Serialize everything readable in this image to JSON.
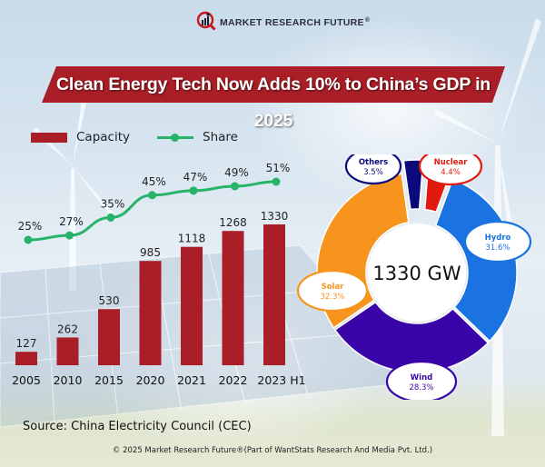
{
  "logo": {
    "text": "MARKET RESEARCH FUTURE",
    "reg": "®",
    "icon": "magnifier-bar-chart-icon"
  },
  "banner": {
    "title": "Clean Energy Tech Now Adds 10% to China’s GDP in 2025",
    "color": "#aa1f27"
  },
  "legend": {
    "capacity_label": "Capacity",
    "share_label": "Share"
  },
  "source": "Source: China Electricity Council (CEC)",
  "copyright": "© 2025 Market Research Future®(Part of WantStats Research And Media Pvt. Ltd.)",
  "colors": {
    "bar": "#aa1f27",
    "line": "#27b36a",
    "solar": "#f7941d",
    "hydro": "#1a73e0",
    "wind": "#3a05a8",
    "nuclear": "#e2190f",
    "others": "#0a0a7a"
  },
  "chart_data": [
    {
      "type": "bar",
      "title": "",
      "xlabel": "",
      "ylabel": "",
      "categories": [
        "2005",
        "2010",
        "2015",
        "2020",
        "2021",
        "2022",
        "2023 H1"
      ],
      "series": [
        {
          "name": "Capacity",
          "type": "bar",
          "values": [
            127,
            262,
            530,
            985,
            1118,
            1268,
            1330
          ],
          "labels": [
            "127",
            "262",
            "530",
            "985",
            "1118",
            "1268",
            "1330"
          ]
        },
        {
          "name": "Share",
          "type": "line",
          "unit": "%",
          "values": [
            25,
            27,
            35,
            45,
            47,
            49,
            51
          ],
          "labels": [
            "25%",
            "27%",
            "35%",
            "45%",
            "47%",
            "49%",
            "51%"
          ]
        }
      ],
      "ylim": [
        0,
        1330
      ],
      "grid": false,
      "legend": "top-left"
    },
    {
      "type": "pie",
      "style": "donut",
      "center_label": "1330 GW",
      "slices": [
        {
          "name": "Others",
          "value": 3.5,
          "label": "3.5%",
          "color": "#0a0a7a"
        },
        {
          "name": "Nuclear",
          "value": 4.4,
          "label": "4.4%",
          "color": "#e2190f"
        },
        {
          "name": "Hydro",
          "value": 31.6,
          "label": "31.6%",
          "color": "#1a73e0"
        },
        {
          "name": "Wind",
          "value": 28.3,
          "label": "28.3%",
          "color": "#3a05a8"
        },
        {
          "name": "Solar",
          "value": 32.3,
          "label": "32.3%",
          "color": "#f7941d"
        }
      ],
      "legend": "callouts"
    }
  ]
}
